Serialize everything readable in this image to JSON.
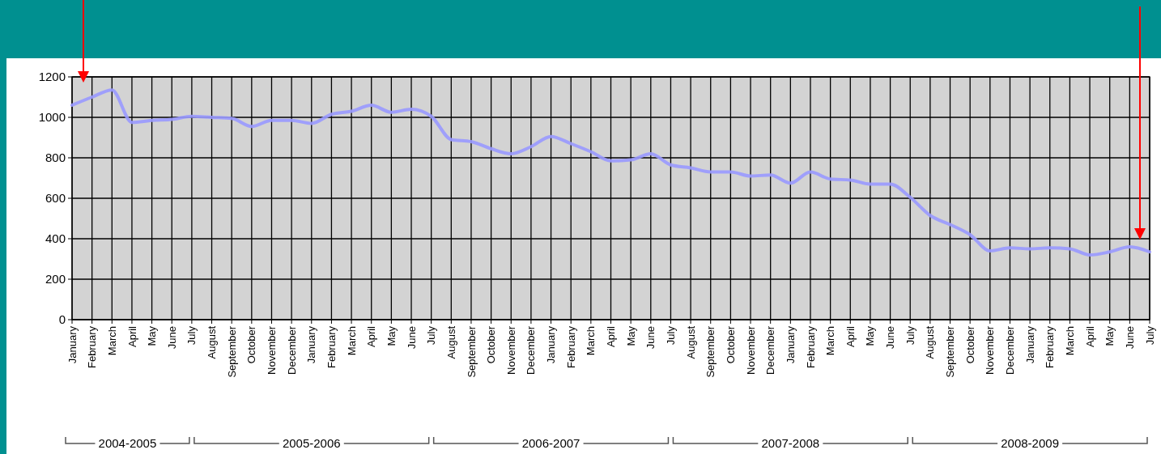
{
  "chart_data": {
    "type": "line",
    "categories": [
      "January",
      "February",
      "March",
      "April",
      "May",
      "June",
      "July",
      "August",
      "September",
      "October",
      "November",
      "December",
      "January",
      "February",
      "March",
      "April",
      "May",
      "June",
      "July",
      "August",
      "September",
      "October",
      "November",
      "December",
      "January",
      "February",
      "March",
      "April",
      "May",
      "June",
      "July",
      "August",
      "September",
      "October",
      "November",
      "December",
      "January",
      "February",
      "March",
      "April",
      "May",
      "June",
      "July",
      "August",
      "September",
      "October",
      "November",
      "December",
      "January",
      "February",
      "March",
      "April",
      "May",
      "June",
      "July"
    ],
    "series": [
      {
        "color": "#9999ff",
        "values": [
          1060,
          1100,
          1135,
          975,
          985,
          990,
          1005,
          1000,
          995,
          955,
          985,
          985,
          970,
          1015,
          1030,
          1060,
          1025,
          1040,
          1005,
          890,
          880,
          845,
          820,
          855,
          905,
          870,
          830,
          785,
          790,
          820,
          765,
          750,
          730,
          730,
          710,
          715,
          675,
          730,
          695,
          690,
          670,
          670,
          605,
          515,
          470,
          420,
          340,
          355,
          350,
          355,
          350,
          320,
          335,
          360,
          335
        ]
      }
    ],
    "ylim": [
      0,
      1200
    ],
    "yticks": [
      0,
      200,
      400,
      600,
      800,
      1000,
      1200
    ],
    "grid": true,
    "marker": "none",
    "line_style": "solid",
    "annotations": [
      "2004-2005",
      "2005-2006",
      "2006-2007",
      "2007-2008",
      "2008-2009"
    ]
  }
}
